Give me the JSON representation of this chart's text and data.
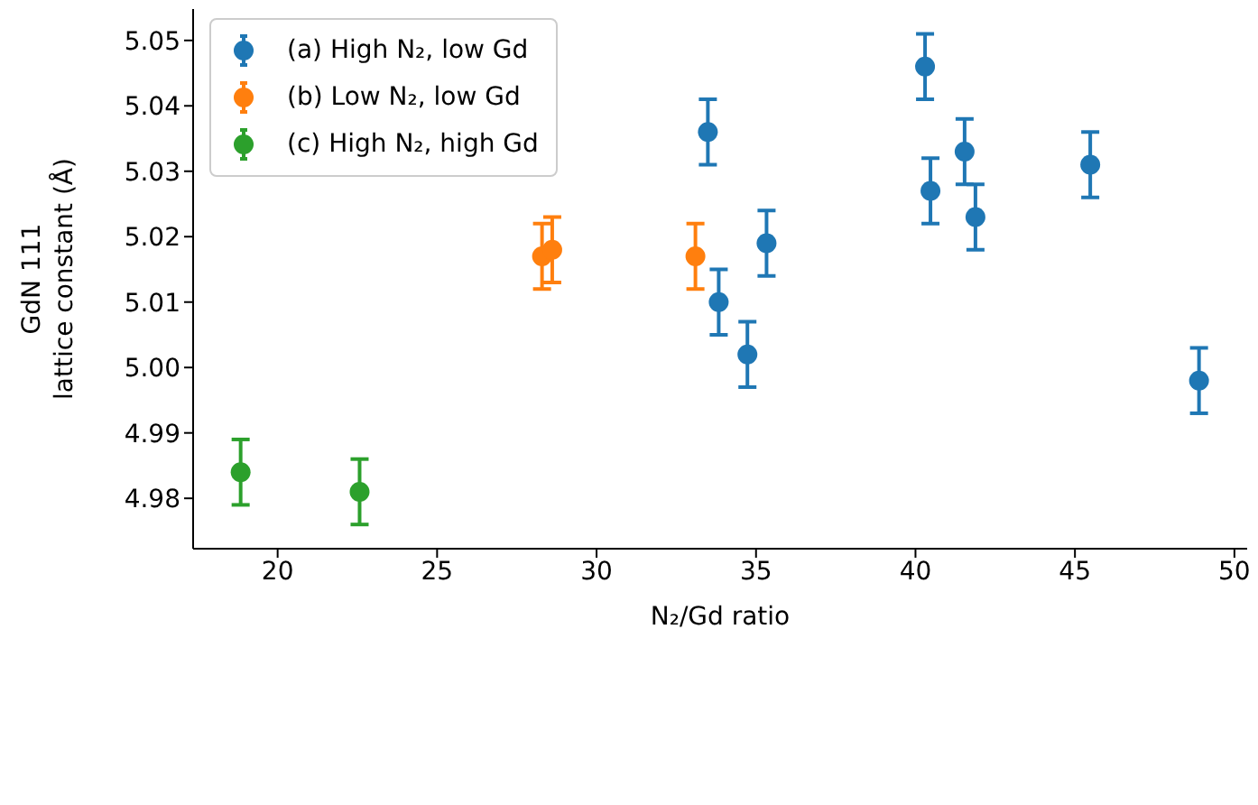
{
  "chart_data": {
    "type": "scatter",
    "xlabel": "N₂/Gd ratio",
    "ylabel": "GdN 111\nlattice constant (Å)",
    "xlim": [
      17.35,
      50.4
    ],
    "xticks": [
      20,
      25,
      30,
      35,
      40,
      45,
      50
    ],
    "ylim": [
      4.9723,
      5.0548
    ],
    "yticks": [
      4.98,
      4.99,
      {
        "value": 5,
        "label": "5.00"
      },
      5.01,
      5.02,
      5.03,
      5.04,
      5.05
    ],
    "grid": false,
    "legend": "top left",
    "marker": "circle",
    "series": [
      {
        "name": "(a) High N₂, low Gd",
        "color": "#1f77b4",
        "x": [
          33.49,
          40.3,
          40.47,
          41.54,
          41.88,
          45.48,
          35.33,
          33.83,
          34.73,
          48.89
        ],
        "values": [
          5.036,
          5.046,
          5.027,
          5.033,
          5.023,
          5.031,
          5.019,
          5.01,
          5.002,
          4.998
        ],
        "errors": [
          0.005,
          0.005,
          0.005,
          0.005,
          0.005,
          0.005,
          0.005,
          0.005,
          0.005,
          0.005
        ]
      },
      {
        "name": "(b) Low N₂, low Gd",
        "color": "#ff7f0e",
        "x": [
          28.29,
          28.61,
          33.1
        ],
        "values": [
          5.017,
          5.018,
          5.017
        ],
        "errors": [
          0.005,
          0.005,
          0.005
        ]
      },
      {
        "name": "(c) High N₂, high Gd",
        "color": "#2ca02c",
        "x": [
          18.84,
          22.57
        ],
        "values": [
          4.984,
          4.981
        ],
        "errors": [
          0.005,
          0.005
        ]
      }
    ]
  }
}
